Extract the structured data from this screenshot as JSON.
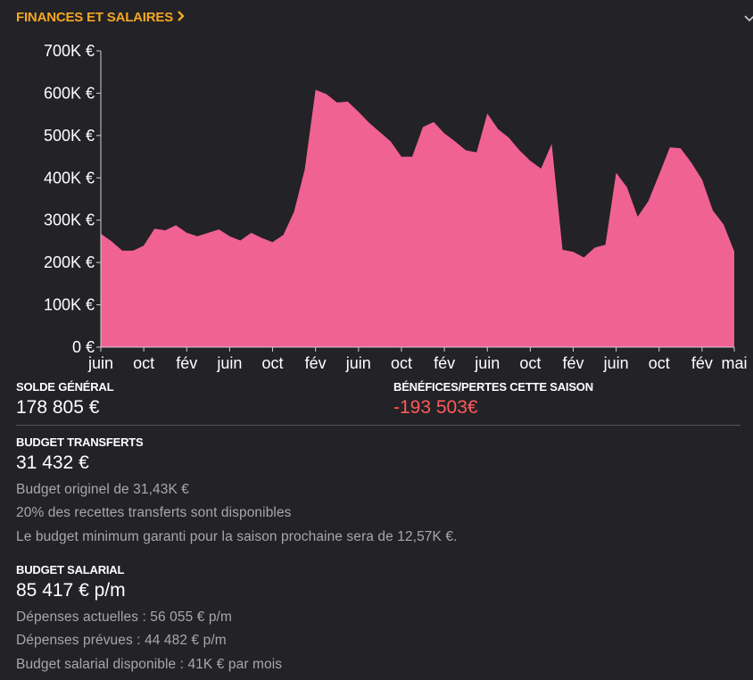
{
  "header": {
    "title": "FINANCES ET SALAIRES",
    "chevron": "chevron-right-icon",
    "accent_color": "#f5a623"
  },
  "chart_data": {
    "type": "area",
    "color": "#f06292",
    "ylim": [
      0,
      700000
    ],
    "y_ticks": [
      {
        "value": 0,
        "label": "0 €"
      },
      {
        "value": 100000,
        "label": "100K €"
      },
      {
        "value": 200000,
        "label": "200K €"
      },
      {
        "value": 300000,
        "label": "300K €"
      },
      {
        "value": 400000,
        "label": "400K €"
      },
      {
        "value": 500000,
        "label": "500K €"
      },
      {
        "value": 600000,
        "label": "600K €"
      },
      {
        "value": 700000,
        "label": "700K €"
      }
    ],
    "x_ticks": [
      {
        "index": 0,
        "label": "juin"
      },
      {
        "index": 4,
        "label": "oct"
      },
      {
        "index": 8,
        "label": "fév"
      },
      {
        "index": 12,
        "label": "juin"
      },
      {
        "index": 16,
        "label": "oct"
      },
      {
        "index": 20,
        "label": "fév"
      },
      {
        "index": 24,
        "label": "juin"
      },
      {
        "index": 28,
        "label": "oct"
      },
      {
        "index": 32,
        "label": "fév"
      },
      {
        "index": 36,
        "label": "juin"
      },
      {
        "index": 40,
        "label": "oct"
      },
      {
        "index": 44,
        "label": "fév"
      },
      {
        "index": 48,
        "label": "juin"
      },
      {
        "index": 52,
        "label": "oct"
      },
      {
        "index": 56,
        "label": "fév"
      },
      {
        "index": 59,
        "label": "mai"
      }
    ],
    "values": [
      268000,
      250000,
      228000,
      228000,
      240000,
      280000,
      276000,
      288000,
      270000,
      262000,
      270000,
      278000,
      262000,
      252000,
      270000,
      258000,
      248000,
      265000,
      320000,
      420000,
      608000,
      598000,
      578000,
      580000,
      556000,
      530000,
      508000,
      486000,
      450000,
      450000,
      520000,
      532000,
      505000,
      486000,
      465000,
      460000,
      552000,
      515000,
      495000,
      465000,
      440000,
      422000,
      480000,
      230000,
      225000,
      212000,
      235000,
      242000,
      412000,
      378000,
      308000,
      345000,
      408000,
      472000,
      470000,
      436000,
      396000,
      323000,
      290000,
      226000
    ]
  },
  "solde": {
    "label": "SOLDE GÉNÉRAL",
    "value": "178 805 €"
  },
  "benefices": {
    "label": "BÉNÉFICES/PERTES CETTE SAISON",
    "value": "-193 503€",
    "color": "#ff5a5a"
  },
  "transferts": {
    "label": "BUDGET TRANSFERTS",
    "value": "31 432 €",
    "details": [
      "Budget originel de 31,43K €",
      "20% des recettes transferts sont disponibles",
      "Le budget minimum garanti pour la saison prochaine sera de 12,57K €."
    ]
  },
  "salarial": {
    "label": "BUDGET SALARIAL",
    "value": "85 417 € p/m",
    "details": [
      "Dépenses actuelles : 56 055 € p/m",
      "Dépenses prévues : 44 482 € p/m",
      "Budget salarial disponible : 41K € par mois"
    ]
  }
}
